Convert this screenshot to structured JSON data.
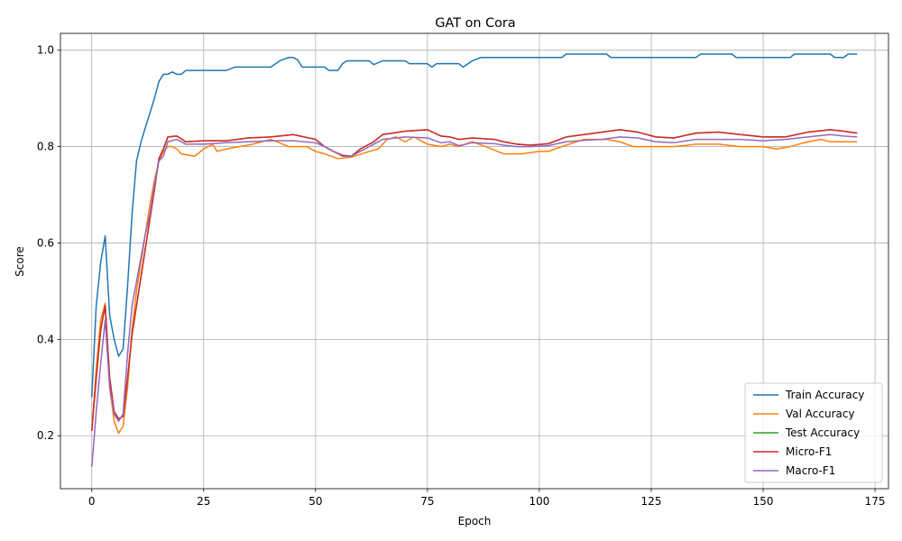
{
  "chart_data": {
    "type": "line",
    "title": "GAT on Cora",
    "xlabel": "Epoch",
    "ylabel": "Score",
    "xlim": [
      -7,
      178
    ],
    "ylim": [
      0.09,
      1.035
    ],
    "xticks": [
      0,
      25,
      50,
      75,
      100,
      125,
      150,
      175
    ],
    "yticks": [
      0.2,
      0.4,
      0.6,
      0.8,
      1.0
    ],
    "xtick_labels": [
      "0",
      "25",
      "50",
      "75",
      "100",
      "125",
      "150",
      "175"
    ],
    "ytick_labels": [
      "0.2",
      "0.4",
      "0.6",
      "0.8",
      "1.0"
    ],
    "grid": true,
    "legend_position": "lower-right",
    "series": [
      {
        "name": "Train Accuracy",
        "color": "#1f77b4",
        "points": [
          [
            0,
            0.28
          ],
          [
            1,
            0.47
          ],
          [
            2,
            0.56
          ],
          [
            3,
            0.615
          ],
          [
            4,
            0.45
          ],
          [
            5,
            0.4
          ],
          [
            6,
            0.365
          ],
          [
            7,
            0.38
          ],
          [
            8,
            0.51
          ],
          [
            9,
            0.66
          ],
          [
            10,
            0.77
          ],
          [
            11,
            0.81
          ],
          [
            12,
            0.84
          ],
          [
            13,
            0.87
          ],
          [
            14,
            0.9
          ],
          [
            15,
            0.935
          ],
          [
            16,
            0.95
          ],
          [
            17,
            0.95
          ],
          [
            18,
            0.955
          ],
          [
            19,
            0.95
          ],
          [
            20,
            0.95
          ],
          [
            21,
            0.958
          ],
          [
            25,
            0.958
          ],
          [
            30,
            0.958
          ],
          [
            32,
            0.965
          ],
          [
            40,
            0.965
          ],
          [
            42,
            0.978
          ],
          [
            44,
            0.985
          ],
          [
            45,
            0.985
          ],
          [
            46,
            0.98
          ],
          [
            47,
            0.965
          ],
          [
            52,
            0.965
          ],
          [
            53,
            0.958
          ],
          [
            55,
            0.958
          ],
          [
            56,
            0.972
          ],
          [
            57,
            0.978
          ],
          [
            62,
            0.978
          ],
          [
            63,
            0.97
          ],
          [
            65,
            0.978
          ],
          [
            70,
            0.978
          ],
          [
            71,
            0.972
          ],
          [
            75,
            0.972
          ],
          [
            76,
            0.965
          ],
          [
            77,
            0.972
          ],
          [
            82,
            0.972
          ],
          [
            83,
            0.965
          ],
          [
            85,
            0.978
          ],
          [
            87,
            0.985
          ],
          [
            105,
            0.985
          ],
          [
            106,
            0.992
          ],
          [
            115,
            0.992
          ],
          [
            116,
            0.985
          ],
          [
            135,
            0.985
          ],
          [
            136,
            0.992
          ],
          [
            143,
            0.992
          ],
          [
            144,
            0.985
          ],
          [
            156,
            0.985
          ],
          [
            157,
            0.992
          ],
          [
            165,
            0.992
          ],
          [
            166,
            0.985
          ],
          [
            168,
            0.985
          ],
          [
            169,
            0.992
          ],
          [
            171,
            0.992
          ]
        ]
      },
      {
        "name": "Val Accuracy",
        "color": "#ff7f0e",
        "points": [
          [
            0,
            0.21
          ],
          [
            1,
            0.34
          ],
          [
            2,
            0.44
          ],
          [
            3,
            0.475
          ],
          [
            4,
            0.3
          ],
          [
            5,
            0.23
          ],
          [
            6,
            0.205
          ],
          [
            7,
            0.22
          ],
          [
            8,
            0.3
          ],
          [
            9,
            0.42
          ],
          [
            10,
            0.5
          ],
          [
            11,
            0.56
          ],
          [
            12,
            0.62
          ],
          [
            13,
            0.68
          ],
          [
            14,
            0.73
          ],
          [
            15,
            0.77
          ],
          [
            16,
            0.79
          ],
          [
            17,
            0.8
          ],
          [
            18,
            0.8
          ],
          [
            19,
            0.795
          ],
          [
            20,
            0.785
          ],
          [
            23,
            0.78
          ],
          [
            25,
            0.795
          ],
          [
            27,
            0.805
          ],
          [
            28,
            0.79
          ],
          [
            30,
            0.795
          ],
          [
            33,
            0.8
          ],
          [
            36,
            0.805
          ],
          [
            40,
            0.815
          ],
          [
            44,
            0.8
          ],
          [
            48,
            0.8
          ],
          [
            50,
            0.79
          ],
          [
            52,
            0.785
          ],
          [
            55,
            0.775
          ],
          [
            58,
            0.778
          ],
          [
            62,
            0.79
          ],
          [
            64,
            0.795
          ],
          [
            66,
            0.815
          ],
          [
            68,
            0.82
          ],
          [
            70,
            0.81
          ],
          [
            72,
            0.82
          ],
          [
            75,
            0.805
          ],
          [
            78,
            0.8
          ],
          [
            80,
            0.805
          ],
          [
            82,
            0.8
          ],
          [
            85,
            0.81
          ],
          [
            88,
            0.8
          ],
          [
            92,
            0.785
          ],
          [
            96,
            0.785
          ],
          [
            100,
            0.79
          ],
          [
            102,
            0.79
          ],
          [
            105,
            0.8
          ],
          [
            110,
            0.815
          ],
          [
            115,
            0.815
          ],
          [
            118,
            0.81
          ],
          [
            121,
            0.8
          ],
          [
            125,
            0.8
          ],
          [
            130,
            0.8
          ],
          [
            135,
            0.805
          ],
          [
            140,
            0.805
          ],
          [
            145,
            0.8
          ],
          [
            150,
            0.8
          ],
          [
            153,
            0.795
          ],
          [
            156,
            0.8
          ],
          [
            160,
            0.81
          ],
          [
            163,
            0.815
          ],
          [
            165,
            0.81
          ],
          [
            168,
            0.81
          ],
          [
            171,
            0.81
          ]
        ]
      },
      {
        "name": "Test Accuracy",
        "color": "#2ca02c",
        "points": [
          [
            0,
            0.21
          ],
          [
            1,
            0.32
          ],
          [
            2,
            0.42
          ],
          [
            3,
            0.47
          ],
          [
            4,
            0.32
          ],
          [
            5,
            0.25
          ],
          [
            6,
            0.235
          ],
          [
            7,
            0.24
          ],
          [
            8,
            0.32
          ],
          [
            9,
            0.41
          ],
          [
            10,
            0.47
          ],
          [
            11,
            0.53
          ],
          [
            12,
            0.59
          ],
          [
            13,
            0.65
          ],
          [
            14,
            0.71
          ],
          [
            15,
            0.775
          ],
          [
            16,
            0.795
          ],
          [
            17,
            0.82
          ],
          [
            19,
            0.822
          ],
          [
            21,
            0.81
          ],
          [
            25,
            0.812
          ],
          [
            30,
            0.812
          ],
          [
            35,
            0.818
          ],
          [
            40,
            0.82
          ],
          [
            45,
            0.825
          ],
          [
            50,
            0.815
          ],
          [
            52,
            0.8
          ],
          [
            54,
            0.79
          ],
          [
            56,
            0.782
          ],
          [
            58,
            0.78
          ],
          [
            60,
            0.795
          ],
          [
            63,
            0.81
          ],
          [
            65,
            0.825
          ],
          [
            70,
            0.832
          ],
          [
            75,
            0.835
          ],
          [
            78,
            0.822
          ],
          [
            80,
            0.82
          ],
          [
            82,
            0.815
          ],
          [
            85,
            0.818
          ],
          [
            90,
            0.815
          ],
          [
            92,
            0.81
          ],
          [
            95,
            0.805
          ],
          [
            98,
            0.803
          ],
          [
            102,
            0.806
          ],
          [
            106,
            0.82
          ],
          [
            110,
            0.825
          ],
          [
            114,
            0.83
          ],
          [
            118,
            0.835
          ],
          [
            122,
            0.83
          ],
          [
            126,
            0.82
          ],
          [
            130,
            0.818
          ],
          [
            135,
            0.828
          ],
          [
            140,
            0.83
          ],
          [
            145,
            0.825
          ],
          [
            150,
            0.82
          ],
          [
            155,
            0.82
          ],
          [
            160,
            0.83
          ],
          [
            165,
            0.835
          ],
          [
            168,
            0.832
          ],
          [
            171,
            0.828
          ]
        ]
      },
      {
        "name": "Micro-F1",
        "color": "#d62728",
        "points": [
          [
            0,
            0.21
          ],
          [
            1,
            0.32
          ],
          [
            2,
            0.42
          ],
          [
            3,
            0.47
          ],
          [
            4,
            0.32
          ],
          [
            5,
            0.25
          ],
          [
            6,
            0.235
          ],
          [
            7,
            0.24
          ],
          [
            8,
            0.32
          ],
          [
            9,
            0.41
          ],
          [
            10,
            0.47
          ],
          [
            11,
            0.53
          ],
          [
            12,
            0.59
          ],
          [
            13,
            0.65
          ],
          [
            14,
            0.71
          ],
          [
            15,
            0.775
          ],
          [
            16,
            0.795
          ],
          [
            17,
            0.82
          ],
          [
            19,
            0.822
          ],
          [
            21,
            0.81
          ],
          [
            25,
            0.812
          ],
          [
            30,
            0.812
          ],
          [
            35,
            0.818
          ],
          [
            40,
            0.82
          ],
          [
            45,
            0.825
          ],
          [
            50,
            0.815
          ],
          [
            52,
            0.8
          ],
          [
            54,
            0.79
          ],
          [
            56,
            0.782
          ],
          [
            58,
            0.78
          ],
          [
            60,
            0.795
          ],
          [
            63,
            0.81
          ],
          [
            65,
            0.825
          ],
          [
            70,
            0.832
          ],
          [
            75,
            0.835
          ],
          [
            78,
            0.822
          ],
          [
            80,
            0.82
          ],
          [
            82,
            0.815
          ],
          [
            85,
            0.818
          ],
          [
            90,
            0.815
          ],
          [
            92,
            0.81
          ],
          [
            95,
            0.805
          ],
          [
            98,
            0.803
          ],
          [
            102,
            0.806
          ],
          [
            106,
            0.82
          ],
          [
            110,
            0.825
          ],
          [
            114,
            0.83
          ],
          [
            118,
            0.835
          ],
          [
            122,
            0.83
          ],
          [
            126,
            0.82
          ],
          [
            130,
            0.818
          ],
          [
            135,
            0.828
          ],
          [
            140,
            0.83
          ],
          [
            145,
            0.825
          ],
          [
            150,
            0.82
          ],
          [
            155,
            0.82
          ],
          [
            160,
            0.83
          ],
          [
            165,
            0.835
          ],
          [
            168,
            0.832
          ],
          [
            171,
            0.828
          ]
        ]
      },
      {
        "name": "Macro-F1",
        "color": "#9467bd",
        "points": [
          [
            0,
            0.135
          ],
          [
            1,
            0.25
          ],
          [
            2,
            0.35
          ],
          [
            3,
            0.44
          ],
          [
            4,
            0.3
          ],
          [
            5,
            0.245
          ],
          [
            6,
            0.23
          ],
          [
            7,
            0.245
          ],
          [
            8,
            0.37
          ],
          [
            9,
            0.47
          ],
          [
            10,
            0.52
          ],
          [
            11,
            0.57
          ],
          [
            12,
            0.62
          ],
          [
            13,
            0.66
          ],
          [
            14,
            0.72
          ],
          [
            15,
            0.77
          ],
          [
            16,
            0.78
          ],
          [
            17,
            0.81
          ],
          [
            19,
            0.815
          ],
          [
            21,
            0.805
          ],
          [
            25,
            0.805
          ],
          [
            30,
            0.808
          ],
          [
            35,
            0.81
          ],
          [
            40,
            0.812
          ],
          [
            45,
            0.812
          ],
          [
            50,
            0.808
          ],
          [
            52,
            0.8
          ],
          [
            54,
            0.79
          ],
          [
            56,
            0.78
          ],
          [
            58,
            0.78
          ],
          [
            60,
            0.79
          ],
          [
            63,
            0.805
          ],
          [
            65,
            0.815
          ],
          [
            70,
            0.82
          ],
          [
            75,
            0.818
          ],
          [
            78,
            0.808
          ],
          [
            80,
            0.81
          ],
          [
            82,
            0.802
          ],
          [
            85,
            0.808
          ],
          [
            90,
            0.806
          ],
          [
            92,
            0.803
          ],
          [
            95,
            0.8
          ],
          [
            98,
            0.8
          ],
          [
            102,
            0.802
          ],
          [
            106,
            0.81
          ],
          [
            110,
            0.813
          ],
          [
            114,
            0.815
          ],
          [
            118,
            0.82
          ],
          [
            122,
            0.818
          ],
          [
            126,
            0.81
          ],
          [
            130,
            0.808
          ],
          [
            135,
            0.815
          ],
          [
            140,
            0.815
          ],
          [
            145,
            0.815
          ],
          [
            150,
            0.812
          ],
          [
            155,
            0.815
          ],
          [
            160,
            0.82
          ],
          [
            165,
            0.825
          ],
          [
            168,
            0.822
          ],
          [
            171,
            0.82
          ]
        ]
      }
    ]
  }
}
